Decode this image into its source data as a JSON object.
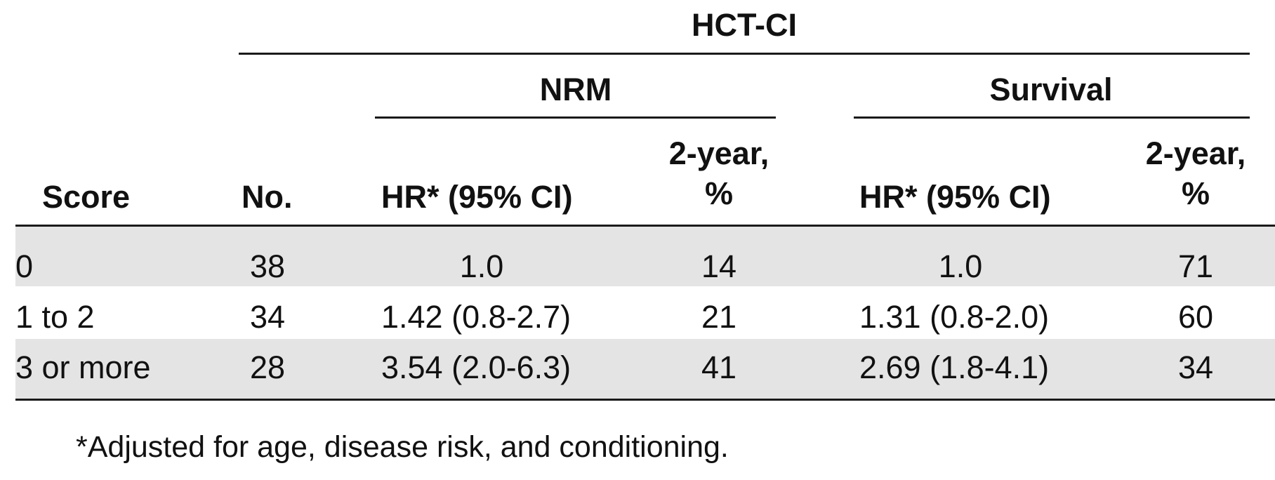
{
  "header": {
    "group_title": "HCT-CI",
    "nrm_title": "NRM",
    "survival_title": "Survival",
    "columns": {
      "score": "Score",
      "no": "No.",
      "nrm_hr": "HR* (95% CI)",
      "nrm_2yr_line1": "2-year,",
      "nrm_2yr_line2": "%",
      "surv_hr": "HR* (95% CI)",
      "surv_2yr_line1": "2-year,",
      "surv_2yr_line2": "%"
    }
  },
  "rows": [
    {
      "score": "0",
      "no": "38",
      "nrm_hr": "1.0",
      "nrm_2yr": "14",
      "surv_hr": "1.0",
      "surv_2yr": "71"
    },
    {
      "score": "1 to 2",
      "no": "34",
      "nrm_hr": "1.42 (0.8-2.7)",
      "nrm_2yr": "21",
      "surv_hr": "1.31 (0.8-2.0)",
      "surv_2yr": "60"
    },
    {
      "score": "3 or more",
      "no": "28",
      "nrm_hr": "3.54 (2.0-6.3)",
      "nrm_2yr": "41",
      "surv_hr": "2.69 (1.8-4.1)",
      "surv_2yr": "34"
    }
  ],
  "footnote": "*Adjusted for age, disease risk, and conditioning.",
  "colors": {
    "shaded_row": "#e4e4e4",
    "rule": "#1a1a1a",
    "text": "#111111"
  }
}
